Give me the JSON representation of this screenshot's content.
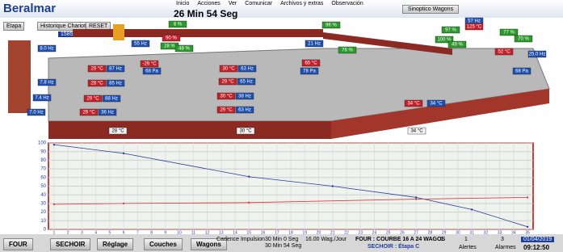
{
  "header": {
    "logo": "Beralmar",
    "timer": "26 Min 54 Seg",
    "menu": [
      "Inicio",
      "Acciones",
      "Ver",
      "Comunicar",
      "Archivos y extras",
      "Observación"
    ],
    "view": "Sinoptico Wagons"
  },
  "toolbar": {
    "stage": "Etapa",
    "history": "Historique Chariots",
    "reset": "RESET",
    "count": "1585 Chariots"
  },
  "plant": {
    "labels": [
      "8.0 Hz",
      "7.8 Hz",
      "7.4 Hz",
      "7.0 Hz",
      "29 °C",
      "87 Hz",
      "28 °C",
      "85 Hz",
      "29 °C",
      "88 Hz",
      "29 °C",
      "36 Hz",
      "-29 °C",
      "68 Pa",
      "30 °C",
      "63 Hz",
      "29 °C",
      "65 Hz",
      "30 °C",
      "38 Hz",
      "29 °C",
      "63 Hz",
      "55 Hz",
      "90 %",
      "28 %",
      "48 %",
      "8 %",
      "21 Hz",
      "96 %",
      "65 °C",
      "78 Pa",
      "76 %",
      "57 Hz",
      "125 °C",
      "97 %",
      "100 %",
      "49 %",
      "77 %",
      "70 %",
      "25.0 Hz",
      "52 °C",
      "68 Pa",
      "34 °C",
      "34 °C",
      "28 °C",
      "30 °C",
      "34 °C"
    ]
  },
  "chart_data": {
    "type": "line",
    "xlim": [
      0.6,
      35.4
    ],
    "ylim": [
      0,
      100
    ],
    "xticks": [
      1,
      2,
      3,
      4,
      5,
      6,
      7,
      8,
      9,
      10,
      11,
      12,
      13,
      14,
      15,
      16,
      17,
      18,
      19,
      20,
      21,
      22,
      23,
      24,
      25,
      26,
      27,
      28,
      29,
      30,
      31,
      32,
      33,
      34,
      35
    ],
    "yticks": [
      0,
      10,
      20,
      30,
      40,
      50,
      60,
      70,
      80,
      90,
      100
    ],
    "series": [
      {
        "color": "#2b3a9a",
        "x": [
          1,
          6,
          15,
          21,
          27,
          31,
          35
        ],
        "values": [
          98,
          88,
          61,
          50,
          37,
          23,
          3
        ]
      },
      {
        "color": "#e03a3a",
        "x": [
          1,
          6,
          15,
          27,
          35
        ],
        "values": [
          29,
          30,
          31,
          35,
          37
        ]
      }
    ]
  },
  "footer": {
    "buttons": [
      "FOUR",
      "SECHOIR",
      "Réglage",
      "Couches",
      "Wagons"
    ],
    "cadence": "Cadence Impulsion",
    "t1": "30 Min 0 Seg",
    "t2": "30 Min 54 Seg",
    "rate": "16.00 Wag./Jour",
    "four": "FOUR : COURBE 16 A 24 WAGOS",
    "sechoir": "SECHOIR : Étapa C",
    "n1": "1",
    "n2": "1",
    "n3": "3",
    "alertes": "Alertes",
    "alarmes": "Alarmes",
    "date": "01/04/2019",
    "time": "09:12:50"
  }
}
